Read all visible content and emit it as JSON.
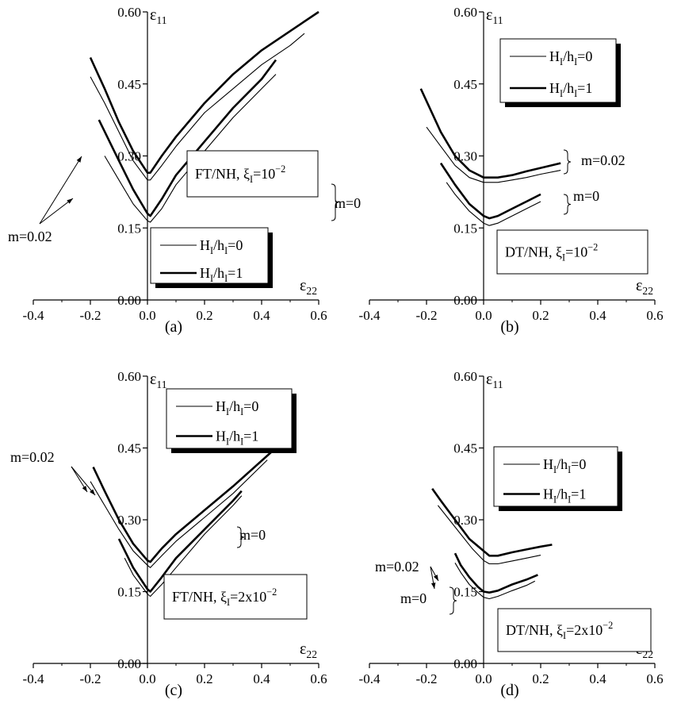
{
  "chart_data": [
    {
      "type": "line",
      "panel_label": "(a)",
      "box_label_main": "FT/NH, ξ",
      "box_label_sub": "I",
      "box_label_eq": "=10",
      "box_label_sup": "−2",
      "xlabel_main": "ε",
      "xlabel_sub": "22",
      "ylabel_main": "ε",
      "ylabel_sub": "11",
      "xlim": [
        -0.4,
        0.6
      ],
      "ylim": [
        0,
        0.6
      ],
      "x_ticks": [
        "-0.4",
        "-0.2",
        "0.0",
        "0.2",
        "0.4",
        "0.6"
      ],
      "y_ticks": [
        "0.00",
        "0.15",
        "0.30",
        "0.45",
        "0.60"
      ],
      "legend": {
        "placement": "bottom",
        "entries": [
          {
            "main": "H",
            "sub": "I",
            "mid": "/h",
            "sub2": "I",
            "tail": "=0",
            "weight": "thin"
          },
          {
            "main": "H",
            "sub": "I",
            "mid": "/h",
            "sub2": "I",
            "tail": "=1",
            "weight": "thick"
          }
        ]
      },
      "annotations": [
        {
          "text": "m=0.02",
          "x": -0.37,
          "y": 0.43
        },
        {
          "text": "m=0",
          "x": 0.47,
          "y": 0.51
        }
      ],
      "series": [
        {
          "weight": "thick",
          "x": [
            -0.2,
            -0.15,
            -0.1,
            -0.05,
            0,
            0.01,
            0.05,
            0.1,
            0.2,
            0.3,
            0.4,
            0.5,
            0.6
          ],
          "y": [
            0.505,
            0.44,
            0.37,
            0.31,
            0.265,
            0.265,
            0.3,
            0.34,
            0.41,
            0.47,
            0.52,
            0.56,
            0.6
          ]
        },
        {
          "weight": "thin",
          "x": [
            -0.2,
            -0.15,
            -0.1,
            -0.05,
            0,
            0.01,
            0.05,
            0.1,
            0.2,
            0.3,
            0.4,
            0.5,
            0.55
          ],
          "y": [
            0.465,
            0.41,
            0.35,
            0.29,
            0.25,
            0.25,
            0.28,
            0.32,
            0.39,
            0.44,
            0.49,
            0.53,
            0.555
          ]
        },
        {
          "weight": "thick",
          "x": [
            -0.17,
            -0.1,
            -0.05,
            0,
            0.01,
            0.05,
            0.1,
            0.2,
            0.3,
            0.4,
            0.45
          ],
          "y": [
            0.375,
            0.29,
            0.23,
            0.18,
            0.175,
            0.21,
            0.26,
            0.33,
            0.4,
            0.46,
            0.5
          ]
        },
        {
          "weight": "thin",
          "x": [
            -0.15,
            -0.1,
            -0.05,
            0,
            0.01,
            0.05,
            0.1,
            0.2,
            0.3,
            0.4,
            0.45
          ],
          "y": [
            0.3,
            0.25,
            0.2,
            0.165,
            0.162,
            0.19,
            0.24,
            0.31,
            0.38,
            0.44,
            0.47
          ]
        }
      ]
    },
    {
      "type": "line",
      "panel_label": "(b)",
      "box_label_main": "DT/NH, ξ",
      "box_label_sub": "I",
      "box_label_eq": "=10",
      "box_label_sup": "−2",
      "xlabel_main": "ε",
      "xlabel_sub": "22",
      "ylabel_main": "ε",
      "ylabel_sub": "11",
      "xlim": [
        -0.4,
        0.6
      ],
      "ylim": [
        0,
        0.6
      ],
      "x_ticks": [
        "-0.4",
        "-0.2",
        "0.0",
        "0.2",
        "0.4",
        "0.6"
      ],
      "y_ticks": [
        "0.00",
        "0.15",
        "0.30",
        "0.45",
        "0.60"
      ],
      "legend": {
        "placement": "top-left",
        "entries": [
          {
            "main": "H",
            "sub": "I",
            "mid": "/h",
            "sub2": "I",
            "tail": "=0",
            "weight": "thin"
          },
          {
            "main": "H",
            "sub": "I",
            "mid": "/h",
            "sub2": "I",
            "tail": "=1",
            "weight": "thick"
          }
        ]
      },
      "annotations": [
        {
          "text": "m=0.02",
          "x": 0.32,
          "y": 0.275
        },
        {
          "text": "m=0",
          "x": 0.22,
          "y": 0.215
        }
      ],
      "series": [
        {
          "weight": "thick",
          "x": [
            -0.22,
            -0.15,
            -0.1,
            -0.05,
            0,
            0.05,
            0.1,
            0.15,
            0.2,
            0.27
          ],
          "y": [
            0.44,
            0.35,
            0.3,
            0.27,
            0.255,
            0.255,
            0.26,
            0.268,
            0.275,
            0.285
          ]
        },
        {
          "weight": "thin",
          "x": [
            -0.2,
            -0.15,
            -0.1,
            -0.05,
            0,
            0.05,
            0.1,
            0.15,
            0.2,
            0.27
          ],
          "y": [
            0.36,
            0.32,
            0.28,
            0.255,
            0.245,
            0.245,
            0.25,
            0.255,
            0.262,
            0.27
          ]
        },
        {
          "weight": "thick",
          "x": [
            -0.15,
            -0.1,
            -0.05,
            0,
            0.02,
            0.05,
            0.1,
            0.15,
            0.2
          ],
          "y": [
            0.285,
            0.24,
            0.2,
            0.175,
            0.17,
            0.175,
            0.19,
            0.205,
            0.22
          ]
        },
        {
          "weight": "thin",
          "x": [
            -0.13,
            -0.1,
            -0.05,
            0,
            0.02,
            0.05,
            0.1,
            0.15,
            0.2
          ],
          "y": [
            0.245,
            0.22,
            0.185,
            0.16,
            0.155,
            0.16,
            0.175,
            0.19,
            0.205
          ]
        }
      ]
    },
    {
      "type": "line",
      "panel_label": "(c)",
      "box_label_main": "FT/NH, ξ",
      "box_label_sub": "I",
      "box_label_eq": "=2x10",
      "box_label_sup": "−2",
      "xlabel_main": "ε",
      "xlabel_sub": "22",
      "ylabel_main": "ε",
      "ylabel_sub": "11",
      "xlim": [
        -0.4,
        0.6
      ],
      "ylim": [
        0,
        0.6
      ],
      "x_ticks": [
        "-0.4",
        "-0.2",
        "0.0",
        "0.2",
        "0.4",
        "0.6"
      ],
      "y_ticks": [
        "0.00",
        "0.15",
        "0.30",
        "0.45",
        "0.60"
      ],
      "legend": {
        "placement": "top-right",
        "entries": [
          {
            "main": "H",
            "sub": "I",
            "mid": "/h",
            "sub2": "I",
            "tail": "=0",
            "weight": "thin"
          },
          {
            "main": "H",
            "sub": "I",
            "mid": "/h",
            "sub2": "I",
            "tail": "=1",
            "weight": "thick"
          }
        ]
      },
      "annotations": [
        {
          "text": "m=0.02",
          "x": -0.35,
          "y": 0.42
        },
        {
          "text": "m=0",
          "x": 0.36,
          "y": 0.37
        }
      ],
      "series": [
        {
          "weight": "thick",
          "x": [
            -0.19,
            -0.15,
            -0.1,
            -0.05,
            0,
            0.01,
            0.05,
            0.1,
            0.2,
            0.3,
            0.45
          ],
          "y": [
            0.41,
            0.36,
            0.3,
            0.25,
            0.215,
            0.212,
            0.24,
            0.27,
            0.32,
            0.37,
            0.45
          ]
        },
        {
          "weight": "thin",
          "x": [
            -0.2,
            -0.15,
            -0.1,
            -0.05,
            0,
            0.01,
            0.05,
            0.1,
            0.2,
            0.3,
            0.42
          ],
          "y": [
            0.38,
            0.33,
            0.28,
            0.235,
            0.205,
            0.2,
            0.225,
            0.255,
            0.305,
            0.355,
            0.425
          ]
        },
        {
          "weight": "thick",
          "x": [
            -0.1,
            -0.05,
            0,
            0.01,
            0.05,
            0.1,
            0.2,
            0.3,
            0.33
          ],
          "y": [
            0.26,
            0.2,
            0.155,
            0.15,
            0.18,
            0.22,
            0.28,
            0.34,
            0.36
          ]
        },
        {
          "weight": "thin",
          "x": [
            -0.08,
            -0.05,
            0,
            0.01,
            0.05,
            0.1,
            0.2,
            0.3,
            0.33
          ],
          "y": [
            0.22,
            0.185,
            0.145,
            0.14,
            0.165,
            0.2,
            0.27,
            0.33,
            0.35
          ]
        }
      ]
    },
    {
      "type": "line",
      "panel_label": "(d)",
      "box_label_main": "DT/NH, ξ",
      "box_label_sub": "I",
      "box_label_eq": "=2x10",
      "box_label_sup": "−2",
      "xlabel_main": "ε",
      "xlabel_sub": "22",
      "ylabel_main": "ε",
      "ylabel_sub": "11",
      "xlim": [
        -0.4,
        0.6
      ],
      "ylim": [
        0,
        0.6
      ],
      "x_ticks": [
        "-0.4",
        "-0.2",
        "0.0",
        "0.2",
        "0.4",
        "0.6"
      ],
      "y_ticks": [
        "0.00",
        "0.15",
        "0.30",
        "0.45",
        "0.60"
      ],
      "legend": {
        "placement": "top-left",
        "entries": [
          {
            "main": "H",
            "sub": "I",
            "mid": "/h",
            "sub2": "I",
            "tail": "=0",
            "weight": "thin"
          },
          {
            "main": "H",
            "sub": "I",
            "mid": "/h",
            "sub2": "I",
            "tail": "=1",
            "weight": "thick"
          }
        ]
      },
      "annotations": [
        {
          "text": "m=0.02",
          "x": -0.36,
          "y": 0.33
        },
        {
          "text": "m=0",
          "x": -0.28,
          "y": 0.225
        }
      ],
      "series": [
        {
          "weight": "thick",
          "x": [
            -0.18,
            -0.15,
            -0.1,
            -0.05,
            0,
            0.02,
            0.05,
            0.1,
            0.15,
            0.2,
            0.24
          ],
          "y": [
            0.365,
            0.34,
            0.3,
            0.26,
            0.235,
            0.225,
            0.225,
            0.232,
            0.238,
            0.244,
            0.248
          ]
        },
        {
          "weight": "thin",
          "x": [
            -0.16,
            -0.12,
            -0.08,
            -0.04,
            0,
            0.02,
            0.05,
            0.1,
            0.15,
            0.2
          ],
          "y": [
            0.33,
            0.3,
            0.27,
            0.24,
            0.215,
            0.208,
            0.208,
            0.214,
            0.22,
            0.226
          ]
        },
        {
          "weight": "thick",
          "x": [
            -0.1,
            -0.08,
            -0.05,
            -0.02,
            0,
            0.02,
            0.05,
            0.1,
            0.15,
            0.19
          ],
          "y": [
            0.23,
            0.205,
            0.18,
            0.16,
            0.15,
            0.148,
            0.152,
            0.165,
            0.175,
            0.185
          ]
        },
        {
          "weight": "thin",
          "x": [
            -0.1,
            -0.08,
            -0.05,
            -0.02,
            0,
            0.02,
            0.05,
            0.1,
            0.15,
            0.18
          ],
          "y": [
            0.21,
            0.19,
            0.165,
            0.148,
            0.138,
            0.135,
            0.14,
            0.152,
            0.163,
            0.172
          ]
        }
      ]
    }
  ]
}
